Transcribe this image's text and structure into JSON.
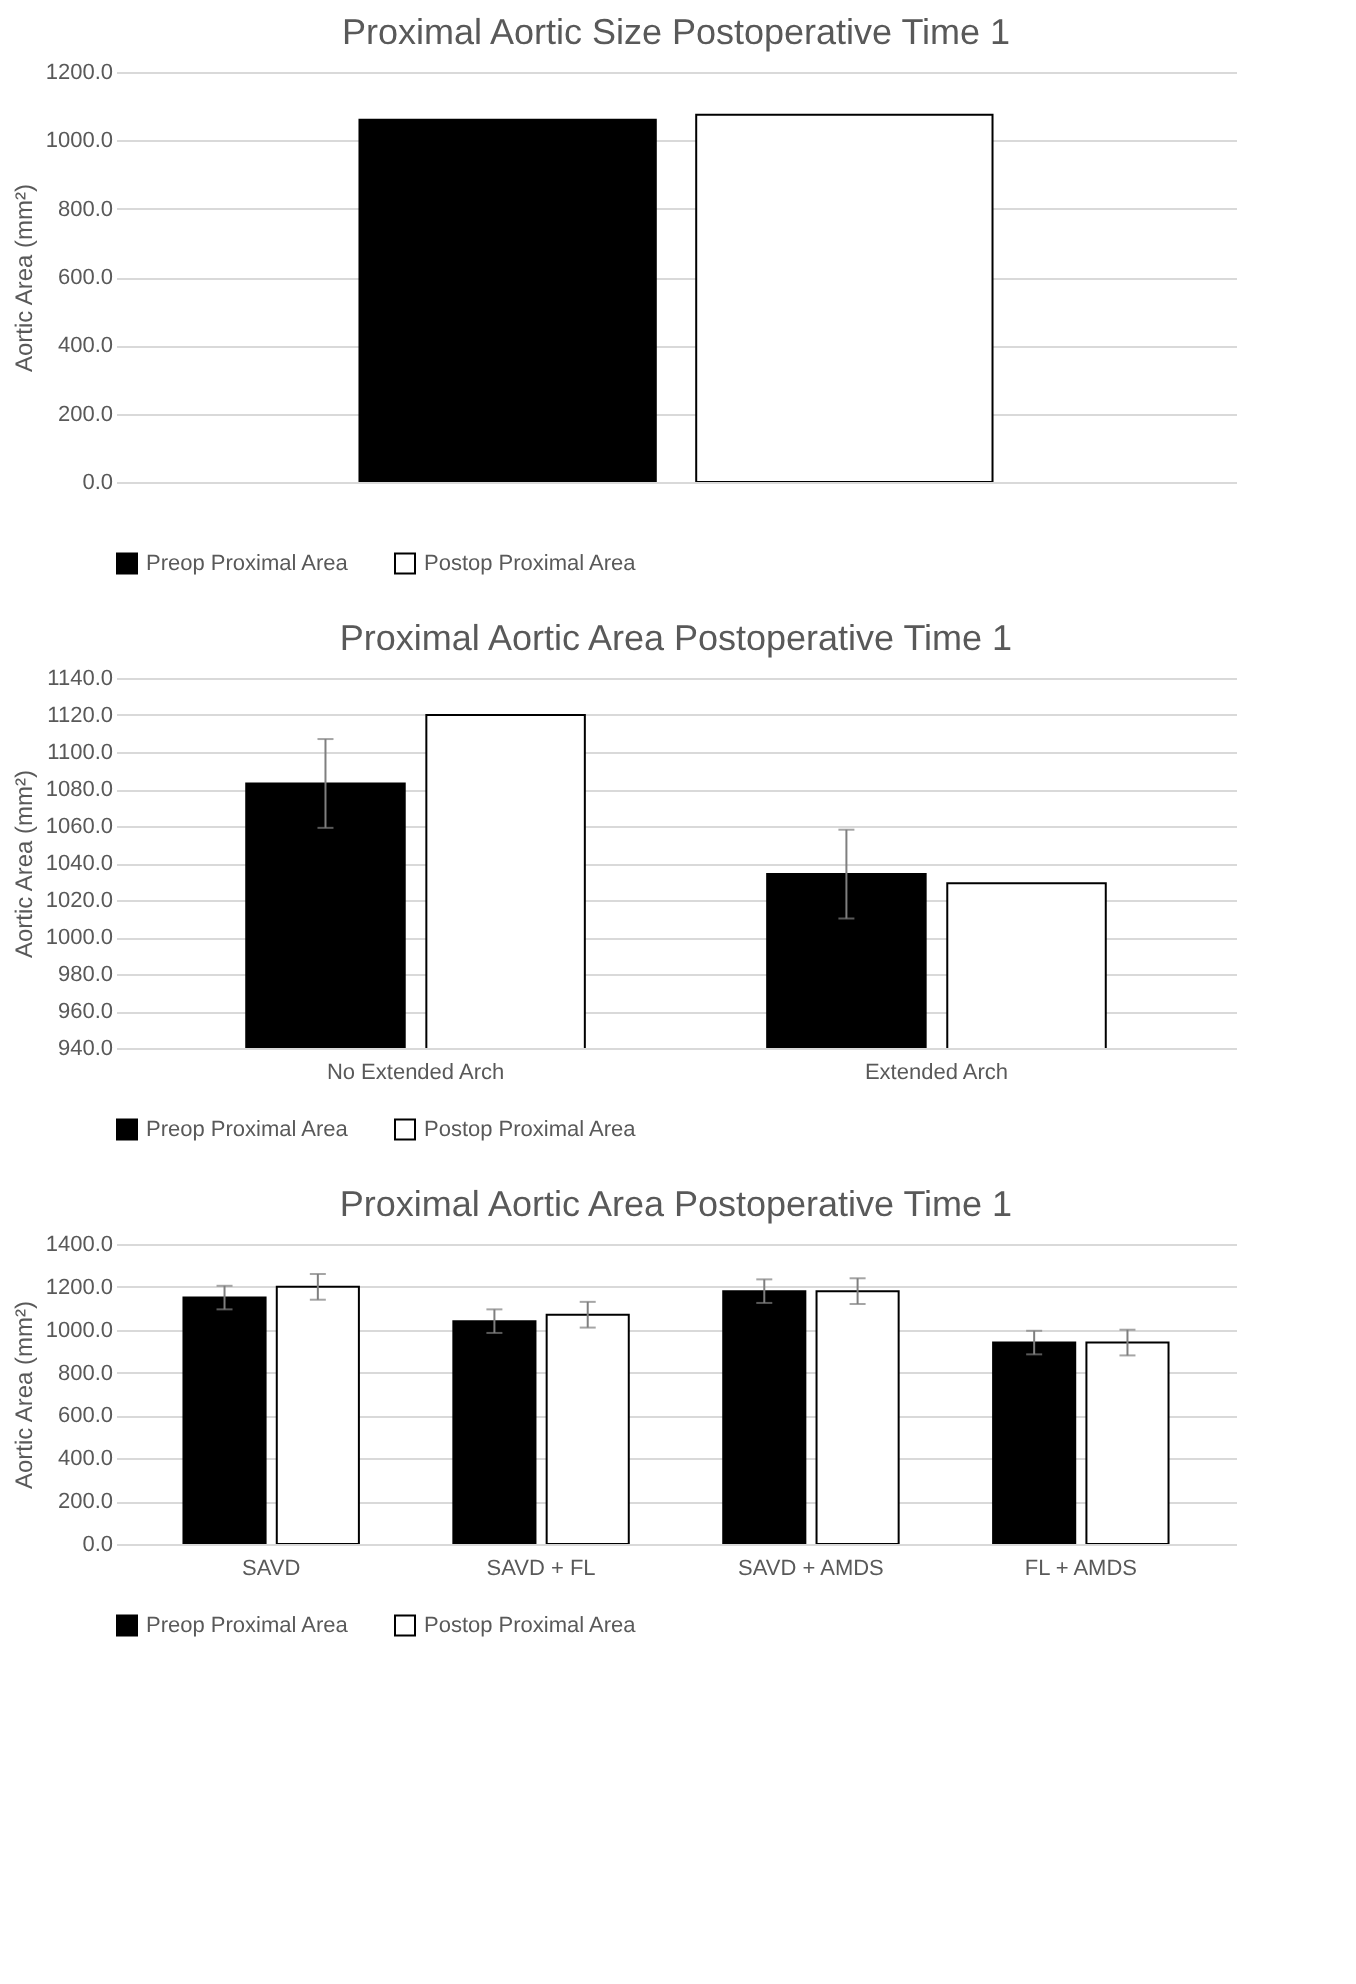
{
  "chart_data": [
    {
      "type": "bar",
      "title": "Proximal Aortic Size Postoperative Time 1",
      "ylabel": "Aortic Area (mm²)",
      "categories": [
        null
      ],
      "ylim": [
        0,
        1200
      ],
      "yticks": [
        {
          "value": 0,
          "label": "0.0"
        },
        {
          "value": 200,
          "label": "200.0"
        },
        {
          "value": 400,
          "label": "400.0"
        },
        {
          "value": 600,
          "label": "600.0"
        },
        {
          "value": 800,
          "label": "800.0"
        },
        {
          "value": 1000,
          "label": "1000.0"
        },
        {
          "value": 1200,
          "label": "1200.0"
        }
      ],
      "grid": "y",
      "legend": "bottom",
      "series": [
        {
          "name": "Preop Proximal Area",
          "color": "#000000",
          "values": [
            1060
          ]
        },
        {
          "name": "Postop Proximal Area",
          "color": "#ffffff",
          "values": [
            1075
          ]
        }
      ]
    },
    {
      "type": "bar",
      "title": "Proximal Aortic Area Postoperative Time 1",
      "ylabel": "Aortic Area (mm²)",
      "categories": [
        "No Extended Arch",
        "Extended Arch"
      ],
      "ylim": [
        940,
        1140
      ],
      "yticks": [
        {
          "value": 940,
          "label": "940.0"
        },
        {
          "value": 960,
          "label": "960.0"
        },
        {
          "value": 980,
          "label": "980.0"
        },
        {
          "value": 1000,
          "label": "1000.0"
        },
        {
          "value": 1020,
          "label": "1020.0"
        },
        {
          "value": 1040,
          "label": "1040.0"
        },
        {
          "value": 1060,
          "label": "1060.0"
        },
        {
          "value": 1080,
          "label": "1080.0"
        },
        {
          "value": 1100,
          "label": "1100.0"
        },
        {
          "value": 1120,
          "label": "1120.0"
        },
        {
          "value": 1140,
          "label": "1140.0"
        }
      ],
      "grid": "y",
      "legend": "bottom",
      "series": [
        {
          "name": "Preop Proximal Area",
          "color": "#000000",
          "values": [
            1083,
            1034
          ],
          "errors": [
            24,
            24
          ]
        },
        {
          "name": "Postop Proximal Area",
          "color": "#ffffff",
          "values": [
            1120,
            1029
          ]
        }
      ]
    },
    {
      "type": "bar",
      "title": "Proximal Aortic Area Postoperative Time 1",
      "ylabel": "Aortic Area (mm²)",
      "categories": [
        "SAVD",
        "SAVD + FL",
        "SAVD + AMDS",
        "FL + AMDS"
      ],
      "ylim": [
        0,
        1400
      ],
      "yticks": [
        {
          "value": 0,
          "label": "0.0"
        },
        {
          "value": 200,
          "label": "200.0"
        },
        {
          "value": 400,
          "label": "400.0"
        },
        {
          "value": 600,
          "label": "600.0"
        },
        {
          "value": 800,
          "label": "800.0"
        },
        {
          "value": 1000,
          "label": "1000.0"
        },
        {
          "value": 1200,
          "label": "1200.0"
        },
        {
          "value": 1400,
          "label": "1400.0"
        }
      ],
      "grid": "y",
      "legend": "bottom",
      "series": [
        {
          "name": "Preop Proximal Area",
          "color": "#000000",
          "values": [
            1150,
            1040,
            1180,
            940
          ],
          "errors": [
            55,
            55,
            55,
            55
          ]
        },
        {
          "name": "Postop Proximal Area",
          "color": "#ffffff",
          "values": [
            1200,
            1070,
            1180,
            940
          ],
          "errors": [
            60,
            60,
            60,
            60
          ]
        }
      ]
    }
  ]
}
